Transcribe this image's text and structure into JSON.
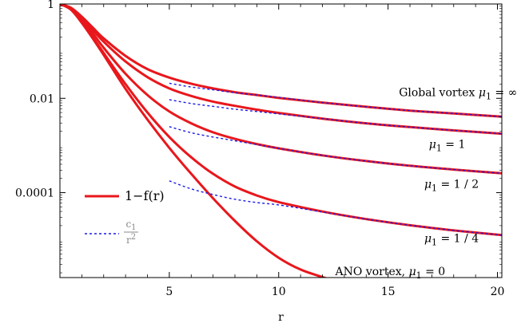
{
  "chart_data": {
    "type": "line",
    "xlabel": "r",
    "ylabel": "",
    "xlim": [
      0,
      20.2
    ],
    "ylim_log10": [
      -5.8,
      0
    ],
    "yscale": "log",
    "grid": false,
    "x_ticks": [
      5,
      10,
      15,
      20
    ],
    "x_tick_labels": [
      "5",
      "10",
      "15",
      "20"
    ],
    "y_ticks_log10": [
      0,
      -2,
      -4
    ],
    "y_tick_labels": [
      "1",
      "0.01",
      "0.0001"
    ],
    "legend_position": "left-middle",
    "legend": {
      "solid_label": "1−f(r)",
      "dashed_num": "c",
      "dashed_num_sub": "1",
      "dashed_den": "r",
      "dashed_den_sup": "2"
    },
    "colors": {
      "solid": "#e8171c",
      "dashed": "#1a1ae6",
      "axis": "#000000"
    },
    "series": [
      {
        "kind": "solid",
        "x": [
          0,
          0.5,
          1,
          1.5,
          2,
          3,
          4,
          5,
          6,
          7,
          8,
          9,
          10,
          12,
          14,
          16,
          18,
          20.2
        ],
        "log10y": [
          0,
          -0.08,
          -0.27,
          -0.5,
          -0.73,
          -1.1,
          -1.38,
          -1.56,
          -1.69,
          -1.79,
          -1.87,
          -1.93,
          -1.99,
          -2.09,
          -2.18,
          -2.26,
          -2.32,
          -2.39
        ]
      },
      {
        "kind": "solid",
        "x": [
          0,
          0.5,
          1,
          1.5,
          2,
          3,
          4,
          5,
          6,
          7,
          8,
          9,
          10,
          12,
          14,
          16,
          18,
          20.2
        ],
        "log10y": [
          0,
          -0.09,
          -0.3,
          -0.55,
          -0.8,
          -1.22,
          -1.55,
          -1.79,
          -1.95,
          -2.07,
          -2.16,
          -2.24,
          -2.31,
          -2.43,
          -2.53,
          -2.61,
          -2.68,
          -2.75
        ]
      },
      {
        "kind": "solid",
        "x": [
          0,
          0.5,
          1,
          1.5,
          2,
          3,
          4,
          5,
          6,
          7,
          8,
          9,
          10,
          12,
          14,
          16,
          18,
          20.2
        ],
        "log10y": [
          0,
          -0.1,
          -0.34,
          -0.62,
          -0.93,
          -1.48,
          -1.93,
          -2.28,
          -2.53,
          -2.72,
          -2.86,
          -2.97,
          -3.06,
          -3.21,
          -3.33,
          -3.43,
          -3.51,
          -3.59
        ]
      },
      {
        "kind": "solid",
        "x": [
          0,
          0.5,
          1,
          1.5,
          2,
          3,
          4,
          5,
          6,
          7,
          8,
          9,
          10,
          12,
          14,
          16,
          18,
          20.2
        ],
        "log10y": [
          0,
          -0.11,
          -0.38,
          -0.7,
          -1.04,
          -1.7,
          -2.3,
          -2.82,
          -3.25,
          -3.6,
          -3.87,
          -4.06,
          -4.2,
          -4.4,
          -4.56,
          -4.69,
          -4.8,
          -4.9
        ]
      },
      {
        "kind": "solid",
        "x": [
          0,
          0.5,
          1,
          1.5,
          2,
          3,
          4,
          5,
          6,
          7,
          8,
          9,
          10,
          11,
          12,
          12.75
        ],
        "log10y": [
          0,
          -0.12,
          -0.4,
          -0.73,
          -1.08,
          -1.8,
          -2.45,
          -3.05,
          -3.6,
          -4.12,
          -4.6,
          -5.03,
          -5.38,
          -5.63,
          -5.79,
          -5.9
        ]
      },
      {
        "kind": "dashed",
        "x": [
          5,
          6,
          7,
          8,
          9,
          10,
          12,
          14,
          16,
          18,
          20.2
        ],
        "log10y": [
          -1.68,
          -1.76,
          -1.82,
          -1.88,
          -1.93,
          -1.98,
          -2.09,
          -2.18,
          -2.26,
          -2.32,
          -2.39
        ]
      },
      {
        "kind": "dashed",
        "x": [
          5,
          6,
          7,
          8,
          9,
          10,
          12,
          14,
          16,
          18,
          20.2
        ],
        "log10y": [
          -2.03,
          -2.11,
          -2.17,
          -2.23,
          -2.28,
          -2.33,
          -2.43,
          -2.53,
          -2.61,
          -2.68,
          -2.75
        ]
      },
      {
        "kind": "dashed",
        "x": [
          5,
          6,
          7,
          8,
          9,
          10,
          12,
          14,
          16,
          18,
          20.2
        ],
        "log10y": [
          -2.6,
          -2.73,
          -2.82,
          -2.9,
          -2.98,
          -3.06,
          -3.21,
          -3.33,
          -3.43,
          -3.51,
          -3.59
        ]
      },
      {
        "kind": "dashed",
        "x": [
          5,
          6,
          7,
          8,
          9,
          10,
          12,
          14,
          16,
          18,
          20.2
        ],
        "log10y": [
          -3.75,
          -3.92,
          -4.04,
          -4.14,
          -4.21,
          -4.26,
          -4.41,
          -4.56,
          -4.69,
          -4.8,
          -4.9
        ]
      }
    ],
    "annotations": [
      {
        "id": "global",
        "text": "Global vortex ",
        "mu_sub": "1",
        "value": " = ∞",
        "x": 18.2,
        "log10y": -1.95
      },
      {
        "id": "mu1",
        "text": "",
        "mu_sub": "1",
        "value": " = 1",
        "x": 17.7,
        "log10y": -3.05
      },
      {
        "id": "mu_half",
        "text": "",
        "mu_sub": "1",
        "value": " = 1 / 2",
        "x": 17.9,
        "log10y": -3.9
      },
      {
        "id": "mu_quarter",
        "text": "",
        "mu_sub": "1",
        "value": " = 1 / 4",
        "x": 17.9,
        "log10y": -5.05
      },
      {
        "id": "ano",
        "text": "ANO vortex, ",
        "mu_sub": "1",
        "value": " = 0",
        "x": 15.1,
        "log10y": -5.75
      }
    ]
  }
}
